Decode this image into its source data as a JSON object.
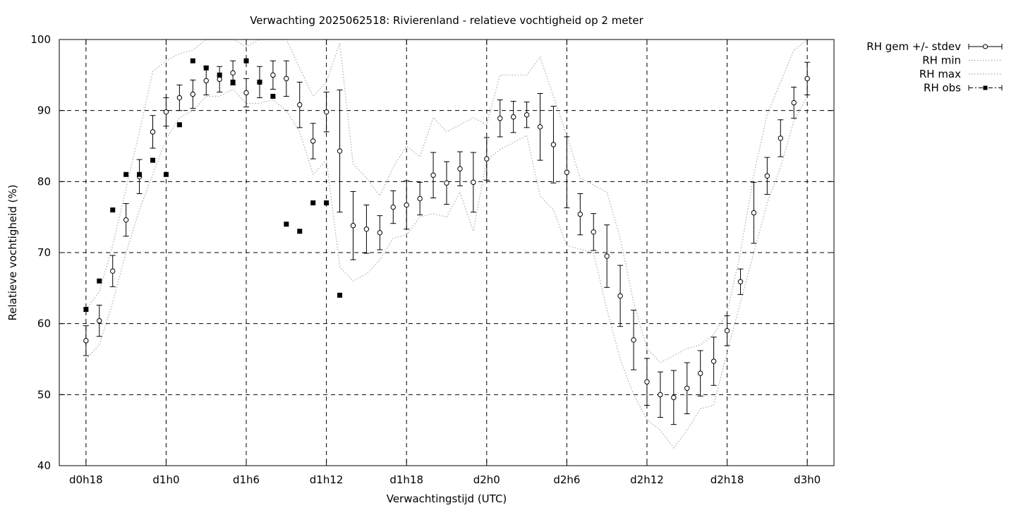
{
  "chart_data": {
    "type": "line",
    "title": "Verwachting 2025062518: Rivierenland - relatieve vochtigheid op 2 meter",
    "xlabel": "Verwachtingstijd (UTC)",
    "ylabel": "Relatieve vochtigheid (%)",
    "xlim": [
      -2,
      56
    ],
    "ylim": [
      40,
      100
    ],
    "grid": true,
    "legend_position": "top-right outside",
    "x_ticks": [
      {
        "value": 0,
        "label": "d0h18"
      },
      {
        "value": 6,
        "label": "d1h0"
      },
      {
        "value": 12,
        "label": "d1h6"
      },
      {
        "value": 18,
        "label": "d1h12"
      },
      {
        "value": 24,
        "label": "d1h18"
      },
      {
        "value": 30,
        "label": "d2h0"
      },
      {
        "value": 36,
        "label": "d2h6"
      },
      {
        "value": 42,
        "label": "d2h12"
      },
      {
        "value": 48,
        "label": "d2h18"
      },
      {
        "value": 54,
        "label": "d3h0"
      }
    ],
    "y_ticks": [
      40,
      50,
      60,
      70,
      80,
      90,
      100
    ],
    "x": [
      0,
      1,
      2,
      3,
      4,
      5,
      6,
      7,
      8,
      9,
      10,
      11,
      12,
      13,
      14,
      15,
      16,
      17,
      18,
      19,
      20,
      21,
      22,
      23,
      24,
      25,
      26,
      27,
      28,
      29,
      30,
      31,
      32,
      33,
      34,
      35,
      36,
      37,
      38,
      39,
      40,
      41,
      42,
      43,
      44,
      45,
      46,
      47,
      48,
      49,
      50,
      51,
      52,
      53,
      54
    ],
    "series": [
      {
        "name": "RH gem +/- stdev",
        "style": "errorbars",
        "color": "#000000",
        "mean": [
          57.6,
          60.4,
          67.4,
          74.6,
          80.7,
          87.0,
          89.8,
          91.8,
          92.3,
          94.2,
          94.4,
          95.3,
          92.5,
          94.0,
          95.0,
          94.5,
          90.8,
          85.7,
          89.8,
          84.3,
          73.8,
          73.3,
          72.8,
          76.4,
          76.7,
          77.6,
          80.9,
          79.8,
          81.8,
          79.9,
          83.2,
          88.9,
          89.1,
          89.4,
          87.7,
          85.2,
          81.3,
          75.4,
          72.9,
          69.5,
          63.9,
          57.7,
          51.8,
          50.0,
          49.6,
          50.9,
          53.0,
          54.7,
          59.0,
          65.9,
          75.6,
          80.8,
          86.1,
          91.1,
          94.5
        ],
        "stdev": [
          2.1,
          2.2,
          2.2,
          2.3,
          2.4,
          2.3,
          2.0,
          1.8,
          2.0,
          2.0,
          1.8,
          1.7,
          2.0,
          2.2,
          2.0,
          2.5,
          3.2,
          2.5,
          2.8,
          8.6,
          4.8,
          3.4,
          2.4,
          2.3,
          3.4,
          2.3,
          3.2,
          3.0,
          2.4,
          4.2,
          3.0,
          2.6,
          2.2,
          1.8,
          4.7,
          5.4,
          5.0,
          2.9,
          2.6,
          4.4,
          4.3,
          4.2,
          3.3,
          3.2,
          3.8,
          3.6,
          3.2,
          3.4,
          2.1,
          1.8,
          4.3,
          2.6,
          2.6,
          2.2,
          2.3
        ]
      },
      {
        "name": "RH min",
        "style": "dotted",
        "color": "#aaaaaa",
        "values": [
          55.0,
          57.0,
          63.0,
          70.0,
          76.0,
          81.0,
          86.0,
          89.0,
          90.0,
          92.0,
          92.0,
          93.0,
          91.0,
          91.0,
          91.5,
          90.0,
          87.0,
          81.0,
          83.0,
          68.0,
          66.0,
          67.0,
          69.0,
          72.0,
          72.5,
          75.0,
          75.5,
          75.0,
          78.5,
          73.0,
          83.0,
          84.5,
          85.5,
          86.5,
          78.0,
          76.0,
          71.0,
          70.5,
          70.0,
          62.0,
          55.0,
          50.0,
          46.5,
          45.0,
          42.5,
          45.0,
          48.0,
          48.5,
          56.0,
          63.0,
          70.0,
          77.0,
          82.0,
          88.5,
          92.0
        ]
      },
      {
        "name": "RH max",
        "style": "dotted",
        "color": "#aaaaaa",
        "values": [
          62.0,
          64.5,
          71.0,
          79.0,
          87.0,
          95.5,
          97.0,
          98.0,
          98.5,
          100.0,
          100.0,
          100.0,
          99.0,
          100.0,
          100.0,
          100.0,
          96.0,
          92.0,
          94.0,
          99.5,
          82.5,
          80.5,
          78.0,
          82.0,
          85.0,
          83.5,
          89.0,
          87.0,
          88.0,
          89.0,
          88.0,
          95.0,
          95.0,
          95.0,
          97.5,
          92.0,
          86.5,
          80.5,
          79.5,
          78.5,
          72.0,
          63.0,
          56.5,
          54.5,
          55.5,
          56.5,
          57.0,
          58.5,
          61.5,
          70.0,
          81.0,
          89.5,
          94.0,
          98.5,
          100.0
        ]
      },
      {
        "name": "RH obs",
        "style": "points",
        "color": "#000000",
        "x": [
          0,
          1,
          2,
          3,
          4,
          5,
          6,
          7,
          8,
          9,
          10,
          11,
          12,
          13,
          14,
          15,
          16,
          17,
          18,
          19
        ],
        "values": [
          62,
          66,
          76,
          81,
          81,
          83,
          81,
          88,
          97,
          96,
          95,
          94,
          97,
          94,
          92,
          74,
          73,
          77,
          77,
          64
        ]
      }
    ]
  }
}
